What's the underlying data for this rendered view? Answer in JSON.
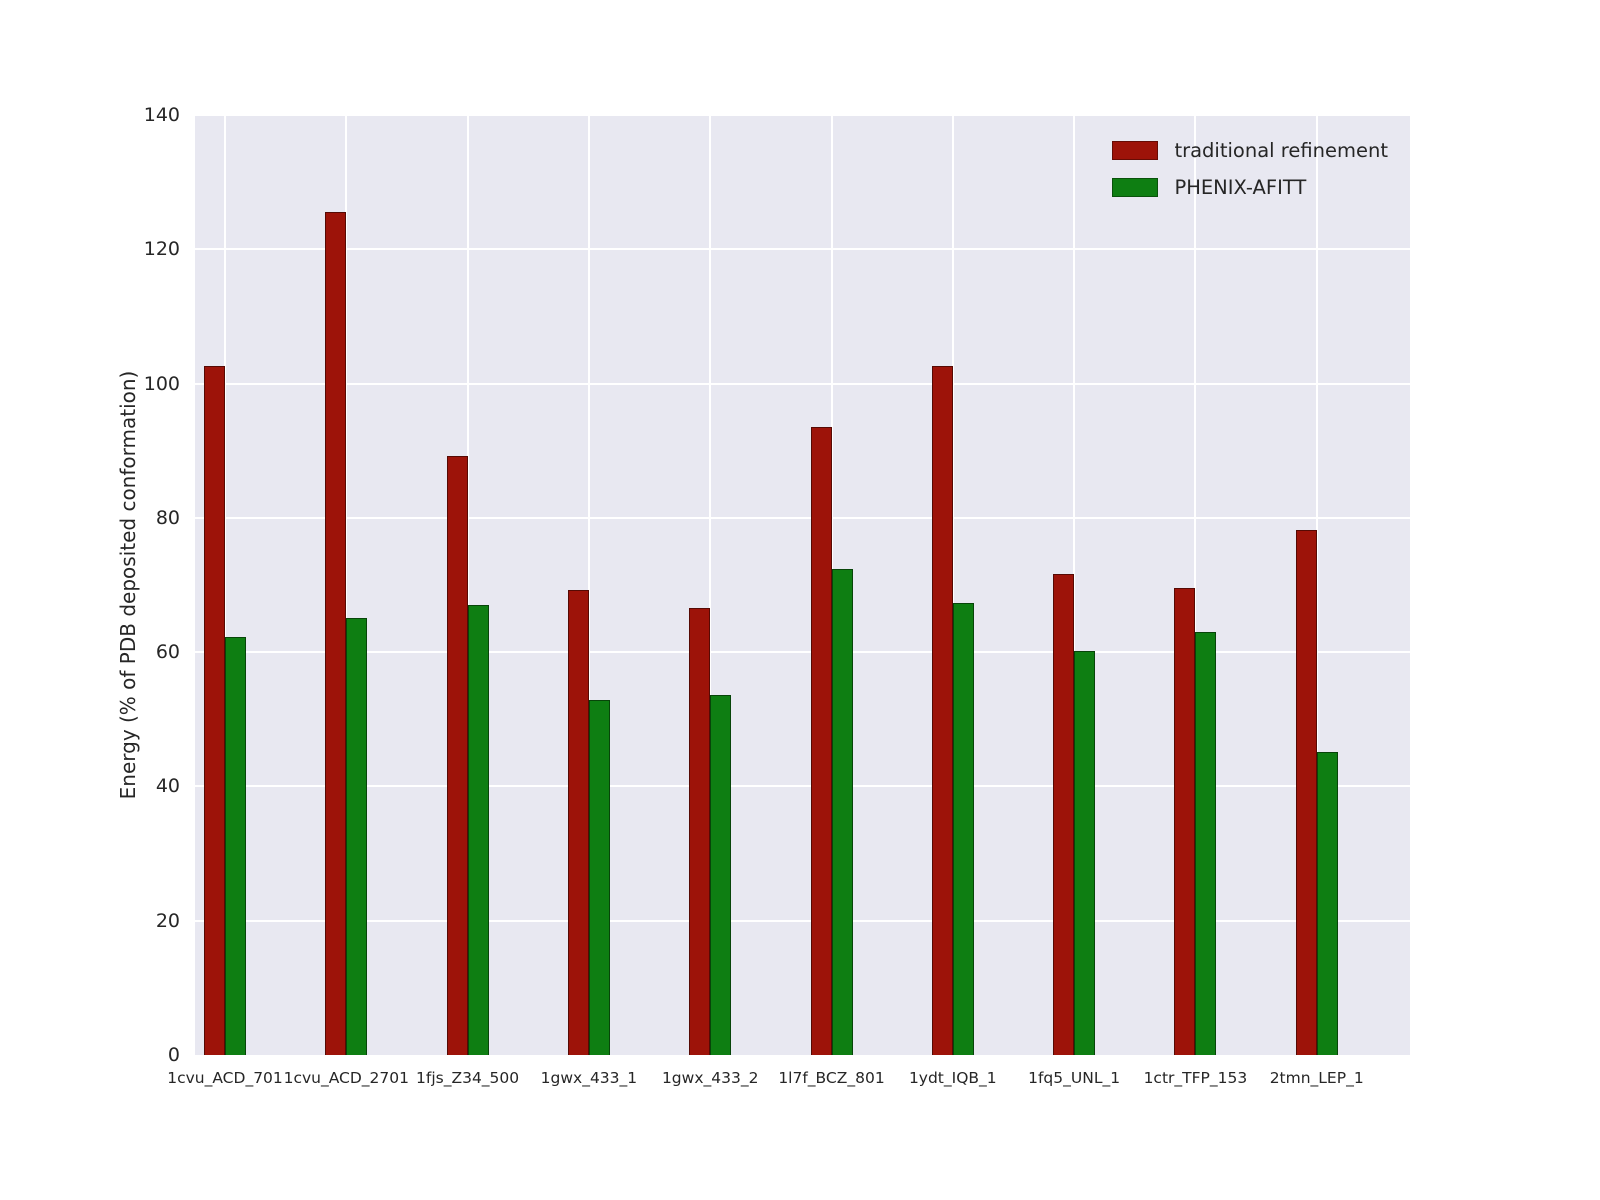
{
  "chart_data": {
    "type": "bar",
    "title": "",
    "xlabel": "",
    "ylabel": "Energy (% of PDB deposited conformation)",
    "ylim": [
      0,
      140
    ],
    "yticks": [
      0,
      20,
      40,
      60,
      80,
      100,
      120,
      140
    ],
    "grid": true,
    "legend_position": "upper right",
    "plot_background": "#E8E8F1",
    "grid_color": "#FFFFFF",
    "categories": [
      "1cvu_ACD_701",
      "1cvu_ACD_2701",
      "1fjs_Z34_500",
      "1gwx_433_1",
      "1gwx_433_2",
      "1l7f_BCZ_801",
      "1ydt_IQB_1",
      "1fq5_UNL_1",
      "1ctr_TFP_153",
      "2tmn_LEP_1"
    ],
    "series": [
      {
        "name": "traditional refinement",
        "color": "#9D1309",
        "values": [
          102.6,
          125.6,
          89.2,
          69.3,
          66.6,
          93.5,
          102.6,
          71.6,
          69.6,
          78.2
        ]
      },
      {
        "name": "PHENIX-AFITT",
        "color": "#0E7E12",
        "values": [
          62.2,
          65.1,
          67.0,
          52.9,
          53.6,
          72.4,
          67.3,
          60.2,
          63.0,
          45.1
        ]
      }
    ]
  }
}
